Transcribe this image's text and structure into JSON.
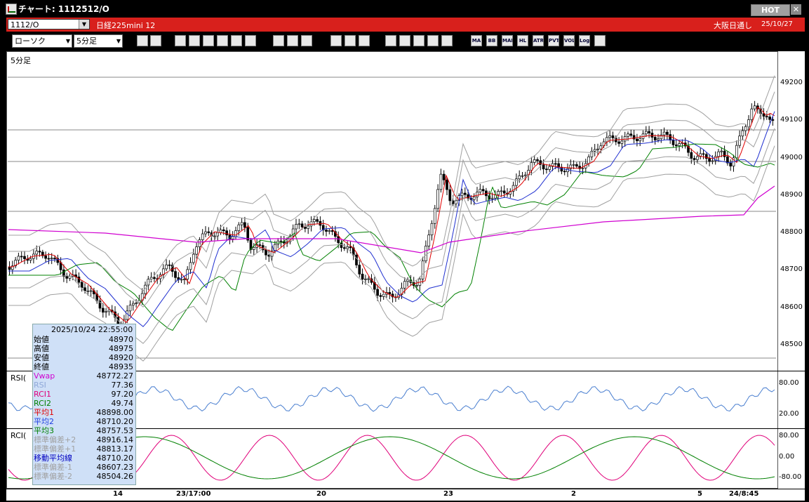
{
  "window": {
    "title": "チャート: 1112512/O",
    "hot_label": "HOT",
    "close_label": "✕"
  },
  "header": {
    "symbol": "1112/O",
    "name": "日経225mini 12",
    "session": "大阪日通し",
    "date": "25/10/27"
  },
  "toolbar": {
    "chart_type": "ローソク",
    "interval": "5分足"
  },
  "toolbar_icons": [
    "zoom-icon",
    "crosshair-icon",
    "pencil-icon",
    "draw-icon",
    "cursor-icon",
    "shape-icon",
    "note-icon",
    "trash-icon",
    "candle-icon",
    "bar-icon",
    "all-icon",
    "settings-icon",
    "wrench-icon",
    "palette-icon",
    "order-icon",
    "search-icon",
    "table-icon",
    "flag-icon",
    "clear-icon"
  ],
  "indicator_buttons": [
    "MA",
    "BB",
    "MAE",
    "HL",
    "ATR",
    "PVT",
    "VOL",
    "Log"
  ],
  "main_panel": {
    "label": "5分足",
    "price_ticks": [
      "49200",
      "49100",
      "49000",
      "48900",
      "48800",
      "48700",
      "48600",
      "48500"
    ]
  },
  "rsi_panel": {
    "label": "RSI(",
    "ticks": [
      "80.00",
      "20.00"
    ]
  },
  "rci_panel": {
    "label": "RCI(",
    "ticks": [
      "80.00",
      "0.00",
      "-80.00"
    ]
  },
  "x_axis": {
    "labels": [
      "14",
      "23/17:00",
      "20",
      "23",
      "2",
      "5",
      "24/8:45"
    ]
  },
  "info": {
    "timestamp": "2025/10/24  22:55:00",
    "rows": [
      {
        "k": "始値",
        "v": "48970",
        "color": "#000000"
      },
      {
        "k": "高値",
        "v": "48975",
        "color": "#000000"
      },
      {
        "k": "安値",
        "v": "48920",
        "color": "#000000"
      },
      {
        "k": "終値",
        "v": "48935",
        "color": "#000000"
      },
      {
        "k": "Vwap",
        "v": "48772.27",
        "color": "#d000d0"
      },
      {
        "k": "RSI",
        "v": "77.36",
        "color": "#8fa8d8"
      },
      {
        "k": "RCI1",
        "v": "97.20",
        "color": "#e0007a"
      },
      {
        "k": "RCI2",
        "v": "49.74",
        "color": "#008000"
      },
      {
        "k": "平均1",
        "v": "48898.00",
        "color": "#e00000"
      },
      {
        "k": "平均2",
        "v": "48710.20",
        "color": "#2040e0"
      },
      {
        "k": "平均3",
        "v": "48757.53",
        "color": "#008000"
      },
      {
        "k": "標準偏差+2",
        "v": "48916.14",
        "color": "#a0a0a0"
      },
      {
        "k": "標準偏差+1",
        "v": "48813.17",
        "color": "#a0a0a0"
      },
      {
        "k": "移動平均線",
        "v": "48710.20",
        "color": "#0000c0"
      },
      {
        "k": "標準偏差-1",
        "v": "48607.23",
        "color": "#a0a0a0"
      },
      {
        "k": "標準偏差-2",
        "v": "48504.26",
        "color": "#a0a0a0"
      }
    ]
  },
  "colors": {
    "candle_up": "#ffffff",
    "candle_down": "#000000",
    "ma1": "#e00000",
    "ma2": "#2030d0",
    "ma3": "#008000",
    "vwap": "#d000d0",
    "band": "#a0a0a0",
    "rsi": "#4a7fd0",
    "rci1": "#e0007a",
    "rci2": "#008000"
  }
}
